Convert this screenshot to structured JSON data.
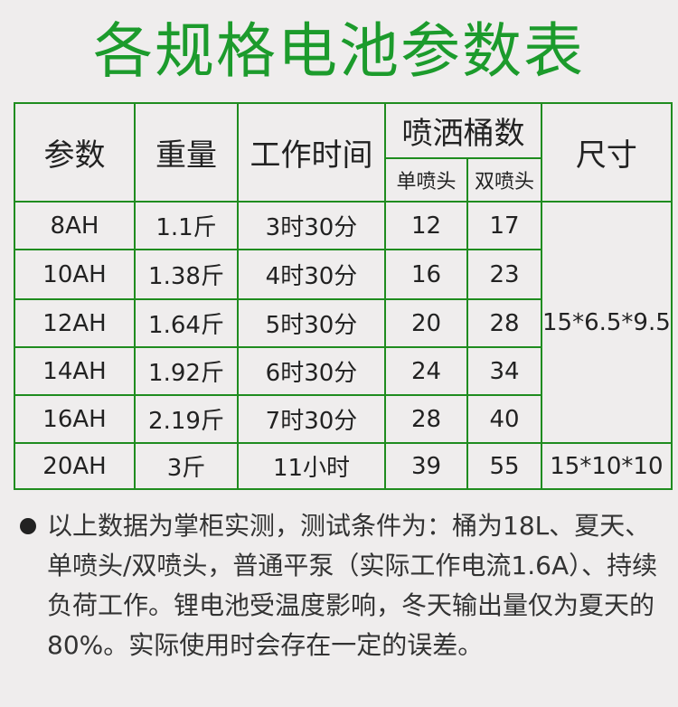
{
  "title": "各规格电池参数表",
  "colors": {
    "accent": "#1c9b2c",
    "border": "#1f8c1f",
    "background": "#efeded"
  },
  "table": {
    "headers": {
      "param": "参数",
      "weight": "重量",
      "work_time": "工作时间",
      "buckets": "喷洒桶数",
      "single": "单喷头",
      "double": "双喷头",
      "size": "尺寸"
    },
    "rows": [
      {
        "param": "8AH",
        "weight": "1.1斤",
        "time": "3时30分",
        "single": "12",
        "double": "17"
      },
      {
        "param": "10AH",
        "weight": "1.38斤",
        "time": "4时30分",
        "single": "16",
        "double": "23"
      },
      {
        "param": "12AH",
        "weight": "1.64斤",
        "time": "5时30分",
        "single": "20",
        "double": "28"
      },
      {
        "param": "14AH",
        "weight": "1.92斤",
        "time": "6时30分",
        "single": "24",
        "double": "34"
      },
      {
        "param": "16AH",
        "weight": "2.19斤",
        "time": "7时30分",
        "single": "28",
        "double": "40"
      },
      {
        "param": "20AH",
        "weight": "3斤",
        "time": "11小时",
        "single": "39",
        "double": "55"
      }
    ],
    "size_group": "15*6.5*9.5",
    "size_last": "15*10*10"
  },
  "note": "以上数据为掌柜实测，测试条件为：桶为18L、夏天、单喷头/双喷头，普通平泵（实际工作电流1.6A）、持续负荷工作。锂电池受温度影响，冬天输出量仅为夏天的80%。实际使用时会存在一定的误差。"
}
